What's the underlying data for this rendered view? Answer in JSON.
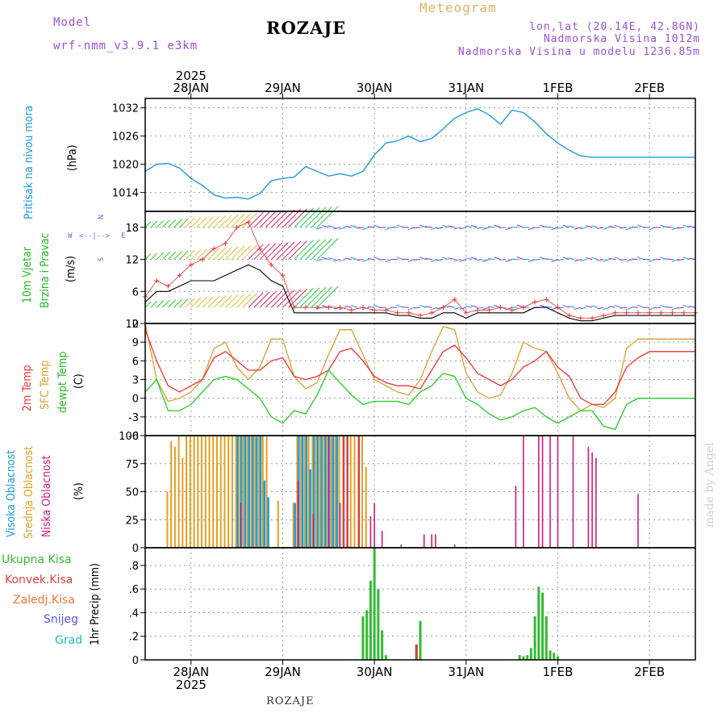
{
  "header": {
    "model_label": "Model",
    "model_name": "wrf-nmm_v3.9.1 e3km",
    "title": "ROZAJE",
    "meteogram": "Meteogram",
    "coords": "lon,lat (20.14E, 42.86N)",
    "altitude": "Nadmorska Visina 1012m",
    "model_altitude": "Nadmorska Visina u modelu 1236.85m",
    "credit": "made by Angel",
    "footer": "ROZAJE"
  },
  "colors": {
    "pressure": "#1e9be0",
    "temp2m": "#ee3333",
    "sfc": "#d9a030",
    "dew": "#22cc22",
    "high_cloud": "#1e9be0",
    "mid_cloud": "#e3a020",
    "low_cloud": "#cc1c7c",
    "precip_total": "#33bb33",
    "precip_conv": "#d04040"
  },
  "panels": {
    "pressure": {
      "label": "Pritisak na nivou mora",
      "unit": "(hPa)"
    },
    "wind": {
      "label1": "10m Vjetar",
      "label2": "Brzina i Pravac",
      "unit": "(m/s)",
      "compass_n": "N",
      "compass_w": "W",
      "compass_e": "E",
      "compass_s": "S",
      "compass_row": "<--|-->"
    },
    "temp": {
      "label1": "2m Temp",
      "label2": "SFC Temp",
      "label3": "dewpt Temp",
      "unit": "(C)"
    },
    "cloud": {
      "label1": "Visoka Oblacnost",
      "label2": "Srednja Oblacnost",
      "label3": "Niska Oblacnost",
      "unit": "(%)"
    },
    "precip": {
      "unit": "1hr Precip (mm)",
      "legend": [
        "Ukupna Kisa",
        "Konvek.Kisa",
        "Zaledj.Kisa",
        "Snijeg",
        "Grad"
      ]
    }
  },
  "chart_data": {
    "type": "line",
    "x_unit": "hours from 2025-01-27 12Z",
    "x_range": [
      0,
      144
    ],
    "year_label": "2025",
    "day_labels": [
      "28JAN",
      "29JAN",
      "30JAN",
      "31JAN",
      "1FEB",
      "2FEB"
    ],
    "pressure": {
      "ylim": [
        1010,
        1034
      ],
      "yticks": [
        1014,
        1020,
        1026,
        1032
      ],
      "x": [
        0,
        3,
        6,
        9,
        12,
        15,
        18,
        21,
        24,
        27,
        30,
        33,
        36,
        39,
        42,
        45,
        48,
        51,
        54,
        57,
        60,
        63,
        66,
        69,
        72,
        75,
        78,
        81,
        84,
        87,
        90,
        93,
        96,
        99,
        102,
        105,
        108,
        111,
        114,
        117,
        120,
        123,
        126,
        129,
        132,
        135,
        138,
        141,
        144
      ],
      "values": [
        1018.5,
        1020.0,
        1020.2,
        1019.2,
        1017.0,
        1015.5,
        1013.5,
        1012.8,
        1013.0,
        1012.6,
        1013.8,
        1016.5,
        1017.0,
        1017.3,
        1019.5,
        1018.5,
        1017.5,
        1018.0,
        1017.5,
        1018.5,
        1022.0,
        1024.5,
        1025.0,
        1026.0,
        1024.8,
        1025.5,
        1027.5,
        1029.8,
        1031.0,
        1031.8,
        1030.5,
        1028.5,
        1031.5,
        1031.0,
        1029.0,
        1026.5,
        1024.5,
        1023.0,
        1021.8,
        1021.5,
        1021.5,
        1021.5,
        1021.5,
        1021.5,
        1021.5,
        1021.5,
        1021.5,
        1021.5,
        1021.5
      ]
    },
    "wind": {
      "ylim": [
        0,
        21
      ],
      "yticks": [
        0,
        6,
        12,
        18
      ],
      "x": [
        0,
        3,
        6,
        9,
        12,
        15,
        18,
        21,
        24,
        27,
        30,
        33,
        36,
        39,
        42,
        45,
        48,
        51,
        54,
        57,
        60,
        63,
        66,
        69,
        72,
        75,
        78,
        81,
        84,
        87,
        90,
        93,
        96,
        99,
        102,
        105,
        108,
        111,
        114,
        117,
        120,
        123,
        126,
        129,
        132,
        135,
        138,
        141,
        144
      ],
      "speed_max": [
        5,
        8,
        7,
        9,
        11,
        12,
        14,
        15,
        18,
        19,
        14,
        11,
        9,
        3,
        3,
        3,
        3,
        3,
        2.5,
        3,
        2.5,
        2.5,
        2,
        2,
        1.5,
        2,
        3,
        4.5,
        2,
        2.5,
        2.5,
        3,
        2.5,
        3,
        4,
        4.5,
        3,
        1.5,
        1,
        1,
        1.5,
        2,
        2,
        2,
        2,
        2,
        2,
        2,
        2
      ],
      "speed_mean": [
        4,
        6,
        6,
        7,
        8,
        8,
        8,
        9,
        10,
        11,
        10,
        8,
        7,
        2,
        2,
        2,
        2,
        2,
        2,
        2,
        2,
        2,
        1.5,
        1.5,
        1,
        1,
        2,
        2,
        1,
        2,
        2,
        2,
        2,
        2,
        3,
        3,
        2,
        1,
        0.5,
        0.5,
        1,
        1.5,
        1.5,
        1.5,
        1.5,
        1.5,
        1.5,
        1.5,
        1.5
      ]
    },
    "temperature": {
      "ylim": [
        -6,
        12
      ],
      "yticks": [
        -6,
        -3,
        0,
        3,
        6,
        9,
        12
      ],
      "x": [
        0,
        3,
        6,
        9,
        12,
        15,
        18,
        21,
        24,
        27,
        30,
        33,
        36,
        39,
        42,
        45,
        48,
        51,
        54,
        57,
        60,
        63,
        66,
        69,
        72,
        75,
        78,
        81,
        84,
        87,
        90,
        93,
        96,
        99,
        102,
        105,
        108,
        111,
        114,
        117,
        120,
        123,
        126,
        129,
        132,
        135,
        138,
        141,
        144
      ],
      "t2m": [
        11,
        6,
        2,
        1,
        2,
        3,
        6.5,
        7.5,
        6,
        4.5,
        4.5,
        6,
        6.5,
        3.5,
        3,
        3.5,
        4.5,
        7.5,
        8,
        6,
        3.5,
        2.5,
        2,
        2,
        1.5,
        4.5,
        7.5,
        8.5,
        6.5,
        4,
        3,
        2,
        3,
        5,
        6,
        7.5,
        5,
        3.5,
        0,
        -1,
        -1,
        1,
        5,
        6.5,
        7.5,
        7.5,
        7.5,
        7.5,
        7.5
      ],
      "sfc": [
        12,
        3,
        -0.5,
        0,
        1,
        3,
        8,
        9,
        5,
        3,
        5,
        9.5,
        9.5,
        3.5,
        1.5,
        2.5,
        7,
        11,
        11,
        7,
        3,
        2,
        1,
        0.5,
        3,
        7.5,
        11.5,
        11,
        4,
        1,
        0,
        0.5,
        4,
        9,
        8,
        7.5,
        4,
        0,
        -2,
        -1,
        -1.5,
        0,
        8,
        9.5,
        9.5,
        9.5,
        9.5,
        9.5,
        9.5
      ],
      "dew": [
        1,
        3,
        -2,
        -2,
        -1,
        1,
        3,
        3.5,
        3,
        1.5,
        0,
        -3,
        -4,
        -2,
        -2.5,
        0.5,
        4.5,
        2.5,
        0.5,
        -1,
        -0.5,
        -0.5,
        -0.5,
        -1,
        1,
        2,
        4,
        3.5,
        0,
        -1,
        -2.5,
        -3.5,
        -3,
        -2,
        -1.5,
        -3,
        -4,
        -3,
        -2,
        -2,
        -4.5,
        -5,
        -1,
        0,
        0,
        0,
        0,
        0,
        0
      ]
    },
    "clouds": {
      "ylim": [
        0,
        100
      ],
      "yticks": [
        0,
        25,
        50,
        75,
        100
      ],
      "high_x": [
        24,
        25,
        26,
        27,
        28,
        29,
        30,
        31,
        32,
        39,
        40,
        41,
        42,
        43,
        44,
        45,
        46,
        47,
        48,
        49,
        50
      ],
      "high_values": [
        100,
        100,
        100,
        100,
        100,
        100,
        100,
        60,
        45,
        40,
        100,
        100,
        100,
        70,
        100,
        100,
        100,
        100,
        100,
        100,
        100
      ],
      "mid_x": [
        6,
        7,
        8,
        9,
        10,
        11,
        12,
        13,
        14,
        15,
        16,
        17,
        18,
        19,
        20,
        21,
        22,
        23,
        24,
        25,
        26,
        27,
        28,
        29,
        30,
        31,
        32,
        35,
        39,
        40,
        41,
        42,
        43,
        44,
        45,
        46,
        47,
        48,
        49,
        50,
        51,
        52,
        53,
        54,
        55,
        56,
        57,
        58
      ],
      "mid_values": [
        50,
        95,
        90,
        100,
        80,
        100,
        100,
        100,
        100,
        100,
        100,
        100,
        100,
        100,
        100,
        100,
        100,
        100,
        100,
        100,
        100,
        100,
        100,
        100,
        100,
        100,
        100,
        42,
        40,
        100,
        100,
        100,
        100,
        100,
        100,
        100,
        100,
        100,
        100,
        100,
        100,
        100,
        100,
        100,
        100,
        100,
        100,
        72
      ],
      "low_x": [
        25,
        40,
        44,
        48,
        51,
        52,
        53,
        56,
        59,
        60,
        62,
        67,
        73,
        75,
        76,
        81,
        97,
        99,
        103,
        104,
        106,
        108,
        112,
        116,
        117,
        118,
        129
      ],
      "low_values": [
        40,
        60,
        30,
        100,
        40,
        100,
        100,
        100,
        28,
        40,
        15,
        3,
        12,
        12,
        12,
        3,
        55,
        100,
        100,
        100,
        100,
        100,
        100,
        90,
        85,
        80,
        48
      ]
    },
    "precip": {
      "ylim": [
        0,
        0.95
      ],
      "yticks": [
        0,
        0.2,
        0.4,
        0.6,
        0.8
      ],
      "total_x": [
        57,
        58,
        59,
        60,
        61,
        62,
        63,
        64,
        71,
        72,
        98,
        99,
        100,
        101,
        102,
        103,
        104,
        105,
        106,
        107,
        108,
        109
      ],
      "total": [
        0.37,
        0.42,
        0.67,
        0.95,
        0.6,
        0.25,
        0.04,
        0.0,
        0.13,
        0.33,
        0.04,
        0.03,
        0.04,
        0.1,
        0.37,
        0.62,
        0.57,
        0.37,
        0.08,
        0.06,
        0.03,
        0.0
      ],
      "conv_x": [
        71
      ],
      "conv": [
        0.13
      ]
    }
  }
}
